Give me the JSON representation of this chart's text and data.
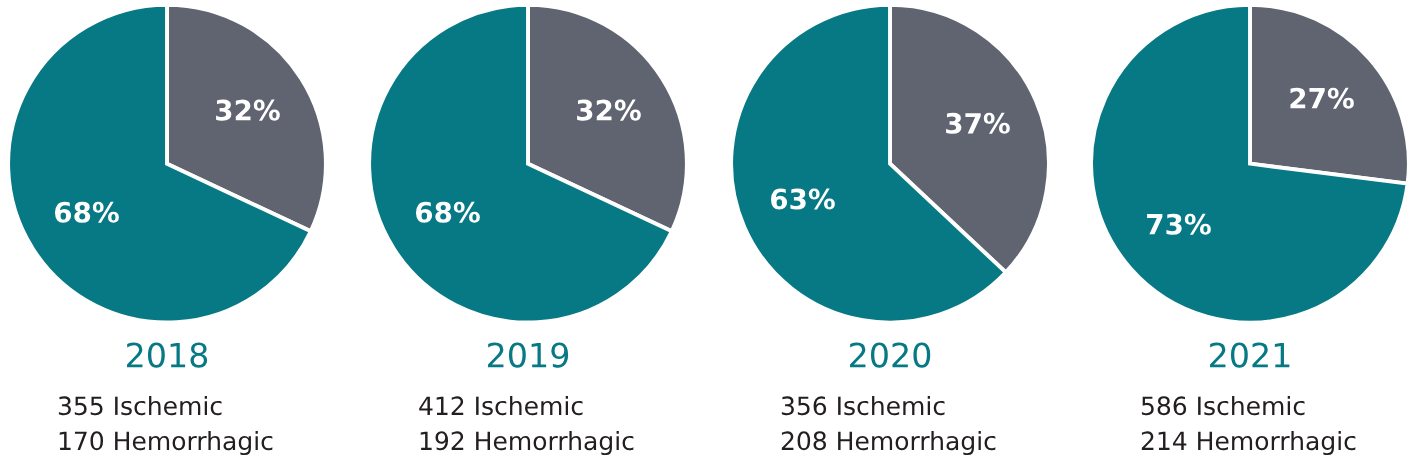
{
  "chart_data": [
    {
      "type": "pie",
      "title": "2018",
      "categories": [
        null,
        null
      ],
      "values": [
        32,
        68
      ],
      "colors": [
        "#5f6470",
        "#077985"
      ],
      "value_labels": [
        "32%",
        "68%"
      ],
      "annotations": [
        "355 Ischemic",
        "170 Hemorrhagic"
      ]
    },
    {
      "type": "pie",
      "title": "2019",
      "categories": [
        null,
        null
      ],
      "values": [
        32,
        68
      ],
      "colors": [
        "#5f6470",
        "#077985"
      ],
      "value_labels": [
        "32%",
        "68%"
      ],
      "annotations": [
        "412 Ischemic",
        "192 Hemorrhagic"
      ]
    },
    {
      "type": "pie",
      "title": "2020",
      "categories": [
        null,
        null
      ],
      "values": [
        37,
        63
      ],
      "colors": [
        "#5f6470",
        "#077985"
      ],
      "value_labels": [
        "37%",
        "63%"
      ],
      "annotations": [
        "356 Ischemic",
        "208 Hemorrhagic"
      ]
    },
    {
      "type": "pie",
      "title": "2021",
      "categories": [
        null,
        null
      ],
      "values": [
        27,
        73
      ],
      "colors": [
        "#5f6470",
        "#077985"
      ],
      "value_labels": [
        "27%",
        "73%"
      ],
      "annotations": [
        "586 Ischemic",
        "214 Hemorrhagic"
      ]
    }
  ]
}
